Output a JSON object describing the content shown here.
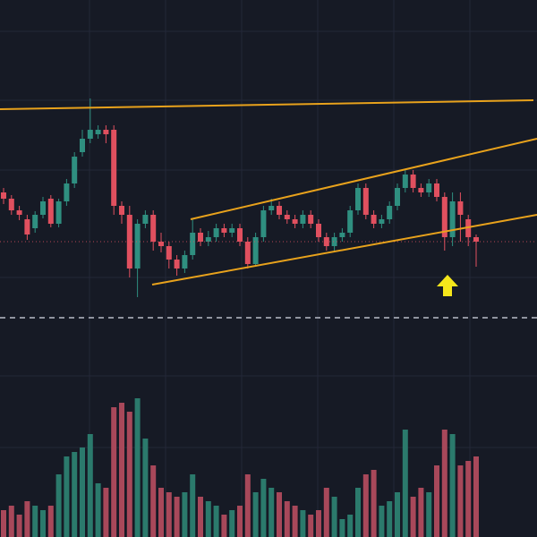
{
  "chart_data": {
    "type": "candlestick",
    "open": [
      135,
      128,
      115,
      105,
      95,
      110,
      128,
      100,
      125,
      145,
      180,
      195,
      200,
      205,
      205,
      120,
      110,
      50,
      100,
      110,
      80,
      75,
      60,
      50,
      65,
      90,
      80,
      85,
      95,
      90,
      95,
      80,
      55,
      85,
      115,
      120,
      110,
      105,
      100,
      110,
      100,
      85,
      75,
      85,
      90,
      115,
      140,
      110,
      100,
      105,
      120,
      140,
      155,
      140,
      135,
      145,
      130,
      85,
      125,
      105,
      85
    ],
    "high": [
      140,
      132,
      120,
      110,
      114,
      130,
      132,
      128,
      150,
      180,
      205,
      240,
      210,
      210,
      210,
      125,
      120,
      105,
      115,
      115,
      90,
      80,
      65,
      70,
      105,
      95,
      92,
      100,
      100,
      100,
      100,
      85,
      90,
      120,
      128,
      125,
      115,
      110,
      115,
      115,
      105,
      90,
      90,
      95,
      120,
      145,
      145,
      115,
      110,
      125,
      145,
      160,
      160,
      145,
      150,
      150,
      135,
      135,
      135,
      110,
      88
    ],
    "low": [
      122,
      110,
      104,
      82,
      90,
      106,
      96,
      96,
      120,
      140,
      175,
      190,
      195,
      190,
      110,
      100,
      40,
      18,
      95,
      70,
      68,
      50,
      42,
      45,
      60,
      75,
      75,
      80,
      85,
      85,
      75,
      50,
      52,
      80,
      110,
      105,
      100,
      95,
      95,
      95,
      80,
      70,
      70,
      80,
      85,
      110,
      105,
      95,
      95,
      100,
      115,
      135,
      135,
      130,
      130,
      125,
      70,
      75,
      80,
      75,
      52
    ],
    "close": [
      128,
      115,
      110,
      88,
      110,
      125,
      100,
      125,
      145,
      175,
      195,
      205,
      205,
      200,
      120,
      110,
      50,
      100,
      110,
      80,
      75,
      60,
      50,
      65,
      90,
      80,
      85,
      95,
      90,
      95,
      80,
      55,
      85,
      115,
      120,
      110,
      105,
      100,
      110,
      100,
      85,
      75,
      85,
      90,
      115,
      140,
      110,
      100,
      105,
      120,
      140,
      155,
      140,
      135,
      145,
      130,
      85,
      125,
      110,
      85,
      80
    ],
    "volume": [
      30,
      35,
      25,
      40,
      35,
      30,
      35,
      70,
      90,
      95,
      100,
      115,
      60,
      55,
      145,
      150,
      140,
      155,
      110,
      80,
      55,
      50,
      45,
      50,
      70,
      45,
      40,
      35,
      25,
      30,
      35,
      70,
      50,
      65,
      55,
      50,
      40,
      35,
      30,
      25,
      30,
      55,
      45,
      20,
      25,
      55,
      70,
      75,
      35,
      40,
      50,
      120,
      45,
      55,
      50,
      80,
      120,
      115,
      80,
      85,
      90
    ],
    "ylim": [
      0,
      350
    ],
    "volume_lim": [
      0,
      240
    ],
    "up_color": "#2f8f80",
    "down_color": "#e0505f",
    "up_volume_color": "#2b7a6c",
    "down_volume_color": "#a8485a"
  }
}
